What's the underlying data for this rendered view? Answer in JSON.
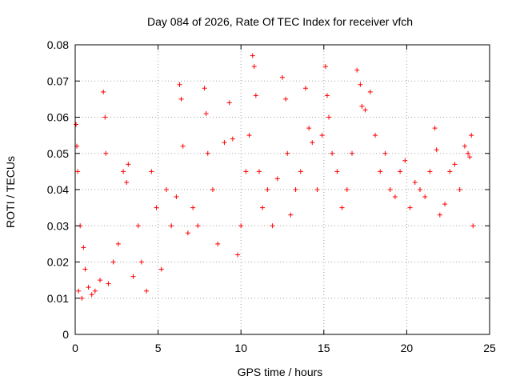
{
  "chart_data": {
    "type": "scatter",
    "title": "Day 084 of 2026, Rate Of TEC Index for receiver vfch",
    "xlabel": "GPS time / hours",
    "ylabel": "ROTI / TECUs",
    "xlim": [
      0,
      25
    ],
    "ylim": [
      0,
      0.08
    ],
    "xticks": [
      0,
      5,
      10,
      15,
      20,
      25
    ],
    "xtick_labels": [
      "0",
      "5",
      "10",
      "15",
      "20",
      "25"
    ],
    "yticks": [
      0,
      0.01,
      0.02,
      0.03,
      0.04,
      0.05,
      0.06,
      0.07,
      0.08
    ],
    "ytick_labels": [
      "0",
      "0.01",
      "0.02",
      "0.03",
      "0.04",
      "0.05",
      "0.06",
      "0.07",
      "0.08"
    ],
    "grid": true,
    "marker": "plus",
    "color": "#ff0000",
    "series": [
      {
        "x": [
          0.05,
          0.1,
          0.15,
          0.2,
          0.3,
          0.4,
          0.5,
          0.6,
          0.8,
          1.0,
          1.2,
          1.5,
          1.7,
          1.8,
          1.85,
          2.0,
          2.3,
          2.6,
          2.9,
          3.1,
          3.2,
          3.5,
          3.8,
          4.0,
          4.3,
          4.6,
          4.9,
          5.2,
          5.5,
          5.8,
          6.1,
          6.3,
          6.4,
          6.5,
          6.8,
          7.1,
          7.4,
          7.8,
          7.9,
          8.0,
          8.3,
          8.6,
          9.0,
          9.3,
          9.5,
          9.8,
          10.0,
          10.3,
          10.5,
          10.7,
          10.8,
          10.9,
          11.1,
          11.3,
          11.6,
          11.9,
          12.2,
          12.5,
          12.7,
          12.8,
          13.0,
          13.3,
          13.6,
          13.9,
          14.1,
          14.3,
          14.6,
          14.9,
          15.1,
          15.2,
          15.3,
          15.5,
          15.8,
          16.1,
          16.4,
          16.7,
          17.0,
          17.2,
          17.3,
          17.5,
          17.8,
          18.1,
          18.4,
          18.7,
          19.0,
          19.3,
          19.6,
          19.9,
          20.2,
          20.5,
          20.8,
          21.1,
          21.4,
          21.7,
          21.8,
          22.0,
          22.3,
          22.6,
          22.9,
          23.2,
          23.5,
          23.7,
          23.8,
          23.9,
          24.0
        ],
        "y": [
          0.058,
          0.052,
          0.045,
          0.012,
          0.03,
          0.01,
          0.024,
          0.018,
          0.013,
          0.011,
          0.012,
          0.015,
          0.067,
          0.06,
          0.05,
          0.014,
          0.02,
          0.025,
          0.045,
          0.042,
          0.047,
          0.016,
          0.03,
          0.02,
          0.012,
          0.045,
          0.035,
          0.018,
          0.04,
          0.03,
          0.038,
          0.069,
          0.065,
          0.052,
          0.028,
          0.035,
          0.03,
          0.068,
          0.061,
          0.05,
          0.04,
          0.025,
          0.053,
          0.064,
          0.054,
          0.022,
          0.03,
          0.045,
          0.055,
          0.077,
          0.074,
          0.066,
          0.045,
          0.035,
          0.04,
          0.03,
          0.043,
          0.071,
          0.065,
          0.05,
          0.033,
          0.04,
          0.045,
          0.068,
          0.057,
          0.053,
          0.04,
          0.055,
          0.074,
          0.066,
          0.06,
          0.05,
          0.045,
          0.035,
          0.04,
          0.05,
          0.073,
          0.069,
          0.063,
          0.062,
          0.067,
          0.055,
          0.045,
          0.05,
          0.04,
          0.038,
          0.045,
          0.048,
          0.035,
          0.042,
          0.04,
          0.038,
          0.045,
          0.057,
          0.051,
          0.033,
          0.036,
          0.045,
          0.047,
          0.04,
          0.052,
          0.05,
          0.049,
          0.055,
          0.03
        ]
      }
    ]
  }
}
